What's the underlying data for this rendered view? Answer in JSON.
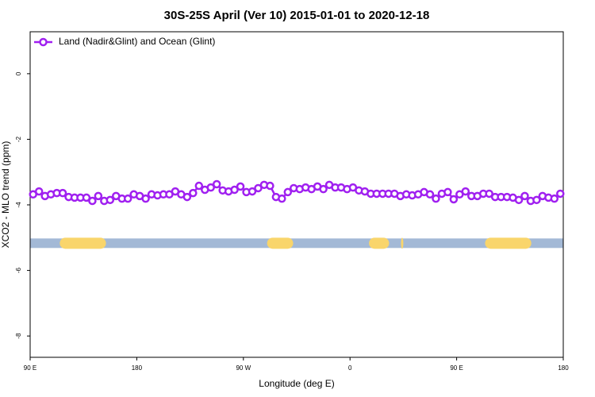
{
  "chart_data": {
    "type": "line",
    "title": "30S-25S April (Ver 10)   2015-01-01 to 2020-12-18",
    "x_label": "Longitude (deg E)",
    "y_label": "XCO2 - MLO trend (ppm)",
    "x": [
      92.5,
      97.5,
      102.5,
      107.5,
      112.5,
      117.5,
      122.5,
      127.5,
      132.5,
      137.5,
      142.5,
      147.5,
      152.5,
      157.5,
      162.5,
      167.5,
      172.5,
      177.5,
      182.5,
      187.5,
      192.5,
      197.5,
      202.5,
      207.5,
      212.5,
      217.5,
      222.5,
      227.5,
      232.5,
      237.5,
      242.5,
      247.5,
      252.5,
      257.5,
      262.5,
      267.5,
      272.5,
      277.5,
      282.5,
      287.5,
      292.5,
      297.5,
      302.5,
      307.5,
      312.5,
      317.5,
      322.5,
      327.5,
      332.5,
      337.5,
      342.5,
      347.5,
      352.5,
      357.5,
      362.5,
      367.5,
      372.5,
      377.5,
      382.5,
      387.5,
      392.5,
      397.5,
      402.5,
      407.5,
      412.5,
      417.5,
      422.5,
      427.5,
      432.5,
      437.5,
      442.5,
      447.5,
      452.5,
      457.5,
      462.5,
      467.5,
      472.5,
      477.5,
      482.5,
      487.5,
      492.5,
      497.5,
      502.5,
      507.5,
      512.5,
      517.5,
      522.5,
      527.5,
      532.5,
      537.5
    ],
    "series": [
      {
        "name": "Land (Nadir&Glint) and Ocean (Glint)",
        "color": "#a020f0",
        "values": [
          -3.68,
          -3.59,
          -3.73,
          -3.68,
          -3.64,
          -3.64,
          -3.76,
          -3.78,
          -3.78,
          -3.78,
          -3.88,
          -3.73,
          -3.88,
          -3.85,
          -3.73,
          -3.81,
          -3.81,
          -3.68,
          -3.73,
          -3.81,
          -3.68,
          -3.71,
          -3.68,
          -3.68,
          -3.59,
          -3.68,
          -3.76,
          -3.64,
          -3.42,
          -3.54,
          -3.47,
          -3.37,
          -3.56,
          -3.59,
          -3.54,
          -3.44,
          -3.61,
          -3.59,
          -3.49,
          -3.39,
          -3.42,
          -3.76,
          -3.81,
          -3.61,
          -3.49,
          -3.52,
          -3.47,
          -3.52,
          -3.44,
          -3.52,
          -3.39,
          -3.47,
          -3.47,
          -3.52,
          -3.47,
          -3.56,
          -3.59,
          -3.66,
          -3.66,
          -3.66,
          -3.66,
          -3.66,
          -3.73,
          -3.68,
          -3.71,
          -3.68,
          -3.61,
          -3.68,
          -3.81,
          -3.66,
          -3.61,
          -3.83,
          -3.68,
          -3.59,
          -3.73,
          -3.73,
          -3.66,
          -3.66,
          -3.76,
          -3.76,
          -3.76,
          -3.78,
          -3.85,
          -3.73,
          -3.88,
          -3.85,
          -3.73,
          -3.78,
          -3.81,
          -3.66
        ]
      }
    ],
    "xlim": [
      90,
      540
    ],
    "xticks": [
      {
        "value": 90,
        "label": "90 E"
      },
      180,
      {
        "value": 270,
        "label": "90 W"
      },
      {
        "value": 360,
        "label": "0"
      },
      {
        "value": 450,
        "label": "90 E"
      },
      {
        "value": 540,
        "label": "180"
      }
    ],
    "ylim": [
      -8.65,
      1.28
    ],
    "yticks": [
      0,
      -2,
      -4,
      -6,
      -8
    ],
    "legend": "top-left",
    "surface": {
      "level": -5.17,
      "ocean_color": "#a3b9d6",
      "land_color": "#f9d56b",
      "land": [
        [
          115,
          154
        ],
        [
          290,
          312
        ],
        [
          376,
          393
        ],
        [
          403,
          405
        ],
        [
          474,
          513
        ]
      ]
    }
  }
}
